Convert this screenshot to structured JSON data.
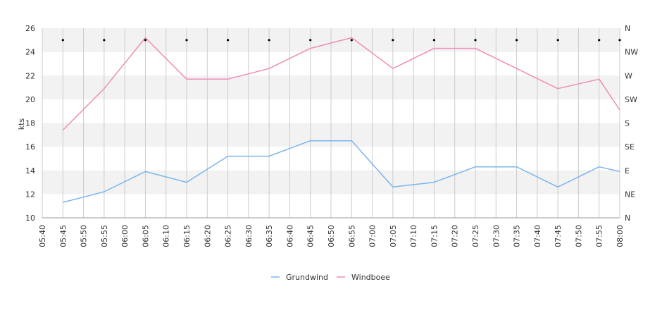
{
  "chart_data": {
    "type": "line",
    "ylabel": "kts",
    "ylim": [
      10,
      26
    ],
    "yticks": [
      "10",
      "12",
      "14",
      "16",
      "18",
      "20",
      "22",
      "24",
      "26"
    ],
    "y2ticks": [
      "N",
      "NE",
      "E",
      "SE",
      "S",
      "SW",
      "W",
      "NW",
      "N"
    ],
    "xticks": [
      "05:40",
      "05:45",
      "05:50",
      "05:55",
      "06:00",
      "06:05",
      "06:10",
      "06:15",
      "06:20",
      "06:25",
      "06:30",
      "06:35",
      "06:40",
      "06:45",
      "06:50",
      "06:55",
      "07:00",
      "07:05",
      "07:10",
      "07:15",
      "07:20",
      "07:25",
      "07:30",
      "07:35",
      "07:40",
      "07:45",
      "07:50",
      "07:55",
      "08:00"
    ],
    "x": [
      "05:45",
      "05:55",
      "06:05",
      "06:15",
      "06:25",
      "06:35",
      "06:45",
      "06:55",
      "07:05",
      "07:15",
      "07:25",
      "07:35",
      "07:45",
      "07:55",
      "08:00"
    ],
    "series": [
      {
        "name": "Grundwind",
        "color": "#7cb5ec",
        "values": [
          11.3,
          12.2,
          13.9,
          13.0,
          15.2,
          15.2,
          16.5,
          16.5,
          12.6,
          13.0,
          14.3,
          14.3,
          12.6,
          14.3,
          13.9
        ]
      },
      {
        "name": "Windboee",
        "color": "#f08cb8",
        "values": [
          17.4,
          20.9,
          25.2,
          21.7,
          21.7,
          22.6,
          24.3,
          25.2,
          22.6,
          24.3,
          24.3,
          22.6,
          20.9,
          21.7,
          19.1
        ]
      }
    ],
    "direction_markers_x": [
      "05:45",
      "05:55",
      "06:05",
      "06:15",
      "06:25",
      "06:35",
      "06:45",
      "06:55",
      "07:05",
      "07:15",
      "07:25",
      "07:35",
      "07:45",
      "07:55",
      "08:00"
    ],
    "direction_markers_value": 25,
    "grid": true,
    "alternating_bands": true,
    "band_color": "#f2f2f2",
    "legend_position": "bottom"
  }
}
